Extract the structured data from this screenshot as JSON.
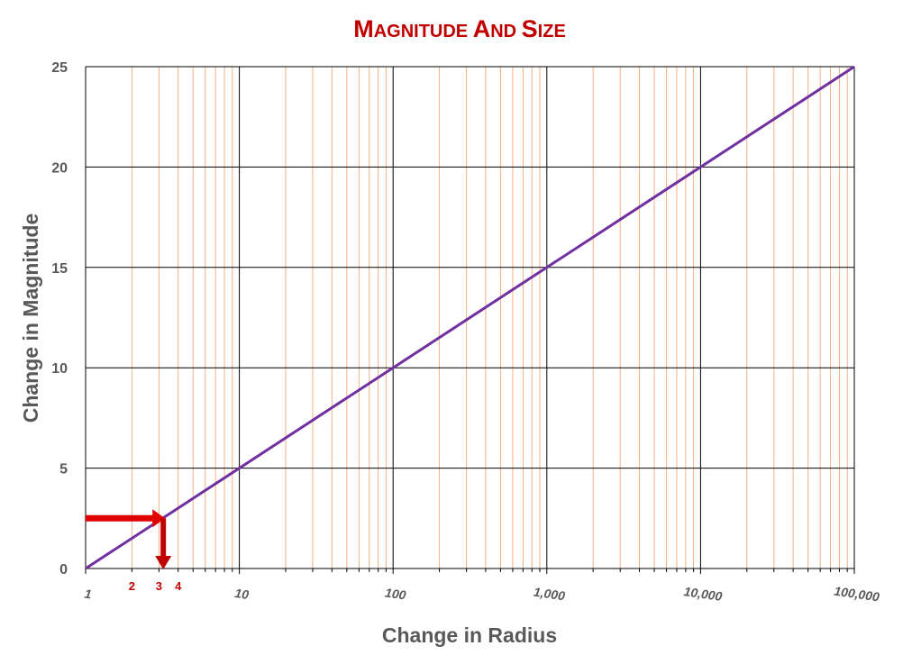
{
  "chart_data": {
    "type": "line",
    "title": "Magnitude and Size",
    "xlabel": "Change in Radius",
    "ylabel": "Change in Magnitude",
    "x_scale": "log",
    "xlim": [
      1,
      100000
    ],
    "ylim": [
      0,
      25
    ],
    "y_ticks": [
      "0",
      "5",
      "10",
      "15",
      "20",
      "25"
    ],
    "x_ticks": [
      {
        "value": 1,
        "label": "1"
      },
      {
        "value": 10,
        "label": "10"
      },
      {
        "value": 100,
        "label": "100"
      },
      {
        "value": 1000,
        "label": "1,000"
      },
      {
        "value": 10000,
        "label": "10,000"
      },
      {
        "value": 100000,
        "label": "100,000"
      }
    ],
    "highlight_ticks": [
      {
        "value": 2,
        "label": "2"
      },
      {
        "value": 3,
        "label": "3"
      },
      {
        "value": 4,
        "label": "4"
      }
    ],
    "grid": true,
    "series": [
      {
        "x": [
          1,
          10,
          100,
          1000,
          10000,
          100000
        ],
        "y": [
          0,
          5,
          10,
          15,
          20,
          25
        ],
        "color": "#7030a0"
      }
    ],
    "annotations": [
      {
        "type": "arrow-horizontal",
        "y": 2.5,
        "from_x": 1,
        "to_x": 3.2,
        "color": "#e00000"
      },
      {
        "type": "arrow-vertical",
        "x": 3.2,
        "from_y": 2.5,
        "to_y": 0,
        "color": "#c00000"
      }
    ],
    "colors": {
      "major_grid": "#000000",
      "minor_grid": "#f4b183",
      "title": "#c00000",
      "axis_text": "#595959"
    }
  }
}
